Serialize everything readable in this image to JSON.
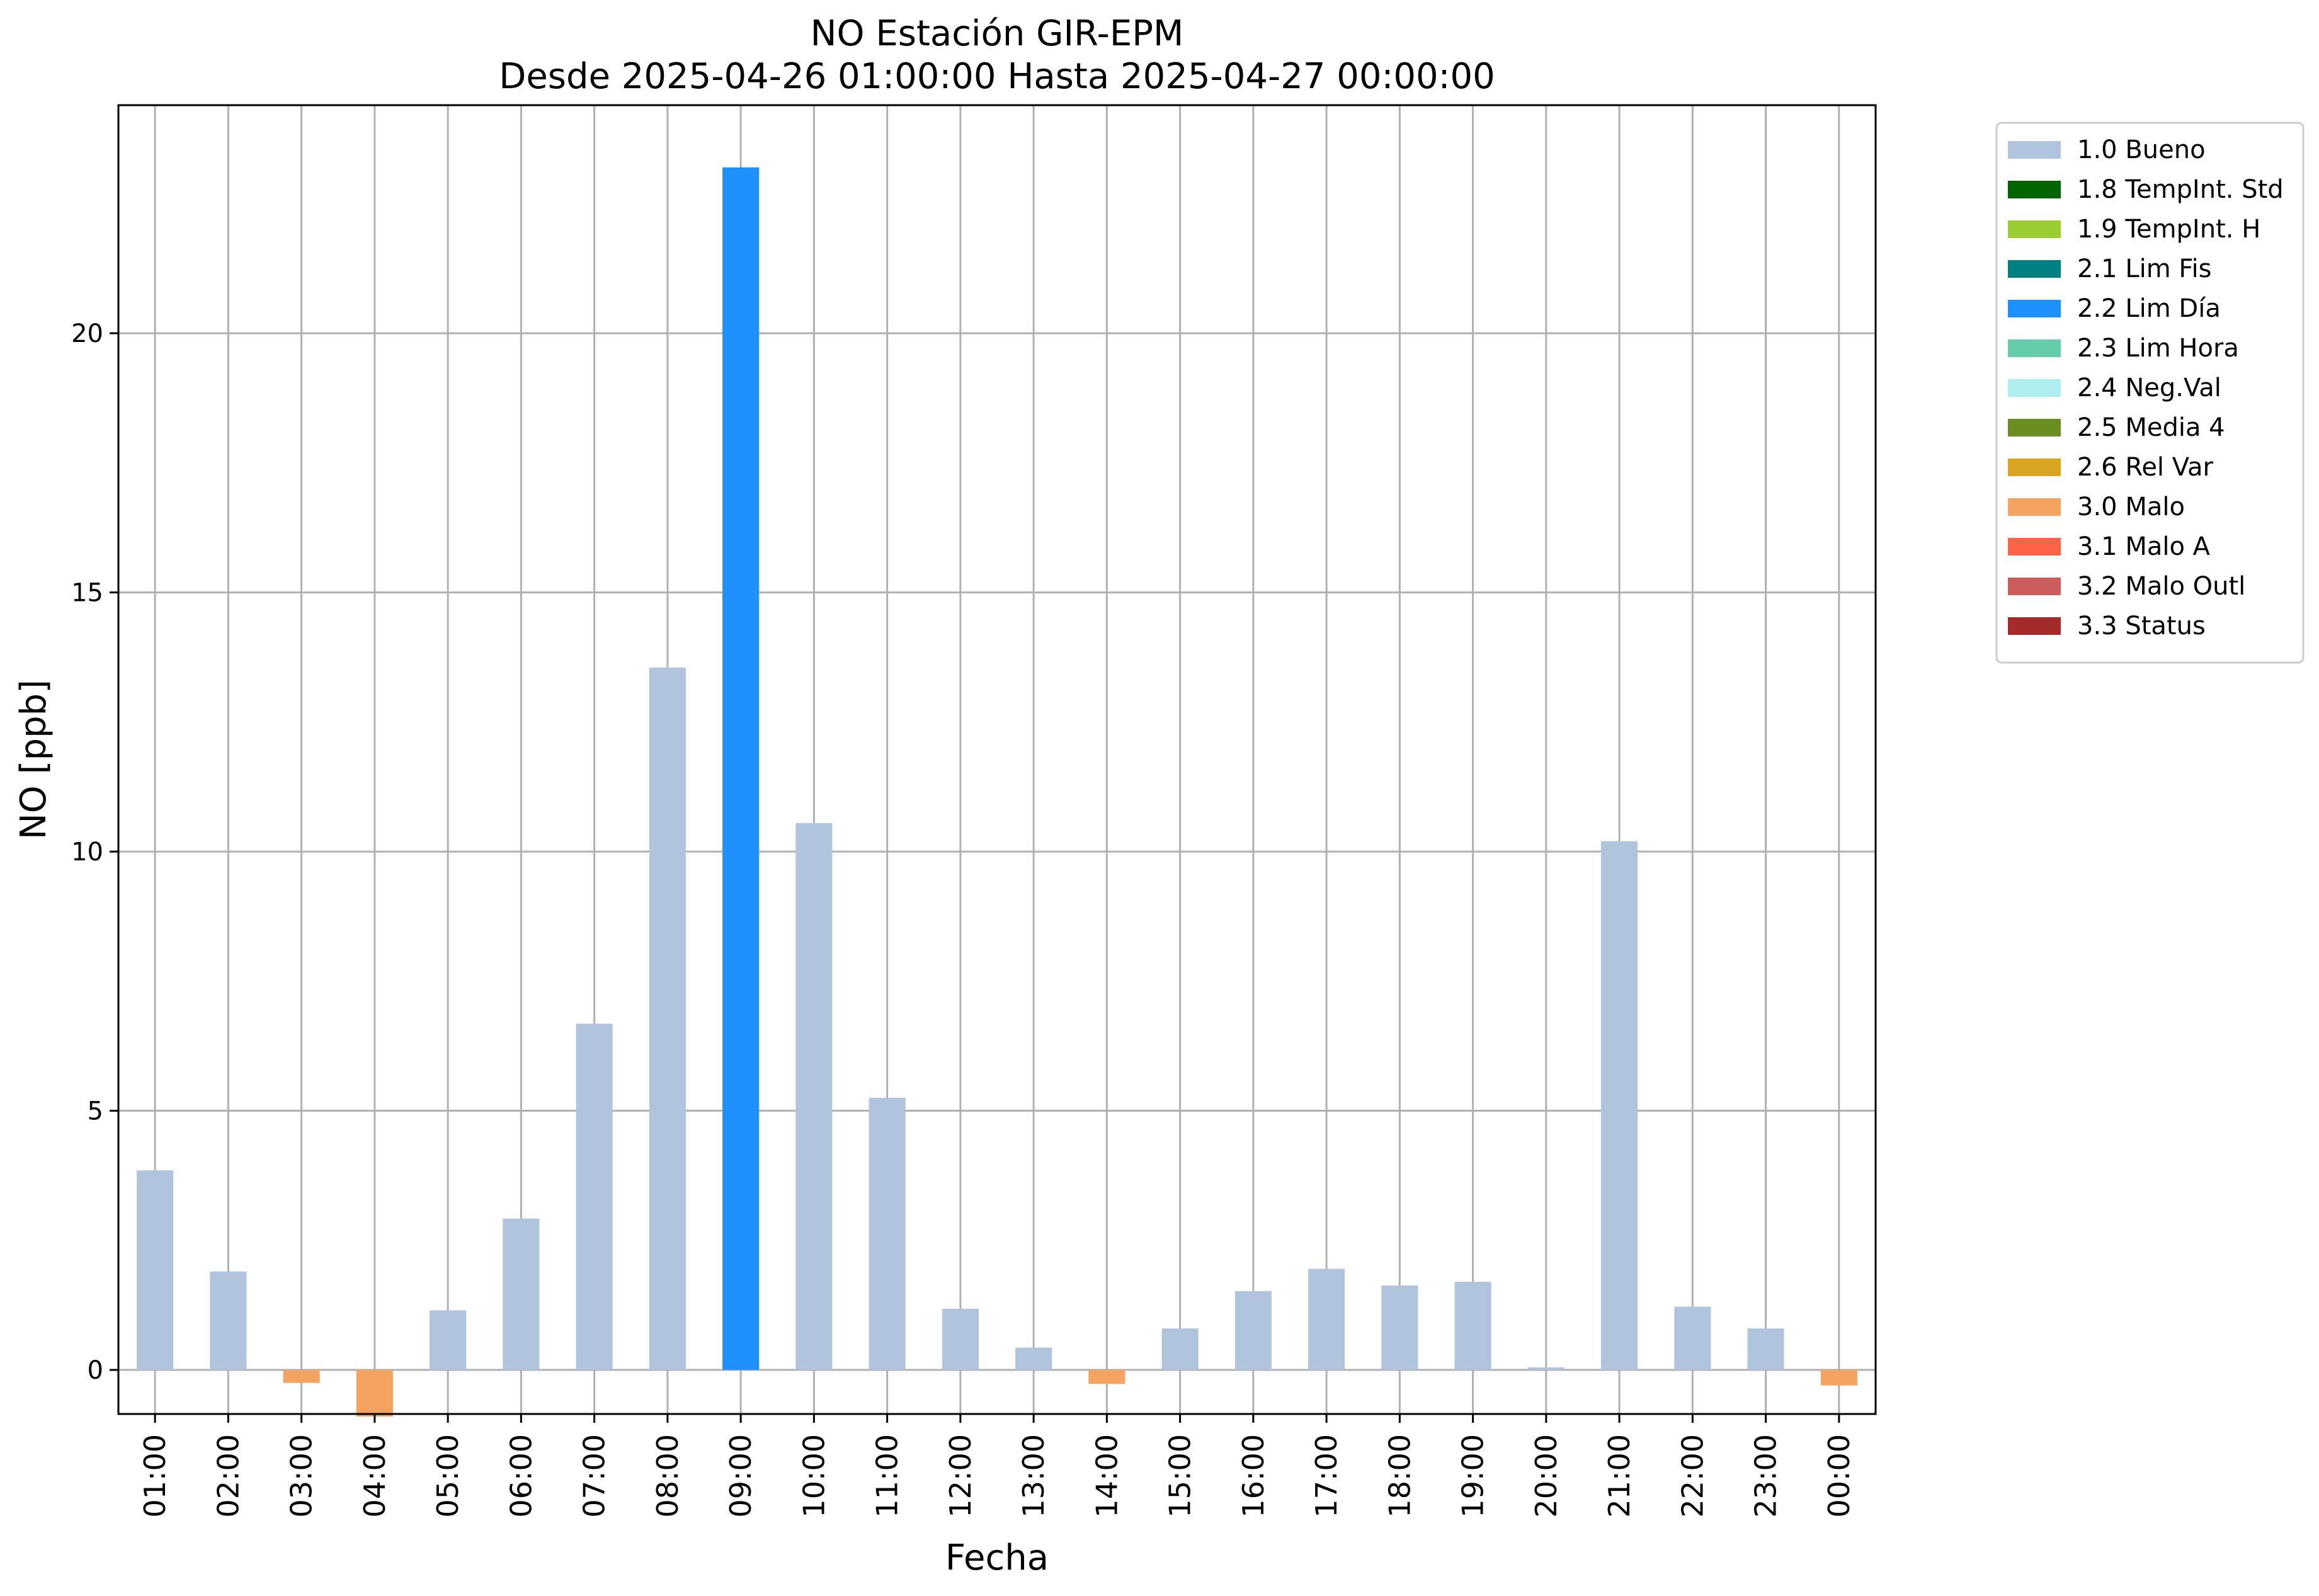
{
  "chart_data": {
    "type": "bar",
    "title": "NO Estación GIR-EPM",
    "subtitle": "Desde 2025-04-26 01:00:00 Hasta 2025-04-27 00:00:00",
    "xlabel": "Fecha",
    "ylabel": "NO [ppb]",
    "ylim": [
      -0.85,
      24.4
    ],
    "yticks": [
      0,
      5,
      10,
      15,
      20
    ],
    "grid": true,
    "legend_position": "outside-right-top",
    "categories": [
      "01:00",
      "02:00",
      "03:00",
      "04:00",
      "05:00",
      "06:00",
      "07:00",
      "08:00",
      "09:00",
      "10:00",
      "11:00",
      "12:00",
      "13:00",
      "14:00",
      "15:00",
      "16:00",
      "17:00",
      "18:00",
      "19:00",
      "20:00",
      "21:00",
      "22:00",
      "23:00",
      "00:00"
    ],
    "values": [
      3.85,
      1.9,
      -0.25,
      -0.9,
      1.15,
      2.92,
      6.68,
      13.55,
      23.2,
      10.55,
      5.25,
      1.18,
      0.43,
      -0.27,
      0.8,
      1.52,
      1.95,
      1.63,
      1.7,
      0.05,
      10.2,
      1.22,
      0.8,
      -0.3
    ],
    "flags": [
      "1.0",
      "1.0",
      "3.0",
      "3.0",
      "1.0",
      "1.0",
      "1.0",
      "1.0",
      "2.2",
      "1.0",
      "1.0",
      "1.0",
      "1.0",
      "3.0",
      "1.0",
      "1.0",
      "1.0",
      "1.0",
      "1.0",
      "1.0",
      "1.0",
      "1.0",
      "1.0",
      "3.0"
    ],
    "legend": [
      {
        "code": "1.0",
        "label": "1.0 Bueno",
        "color": "#b0c4de"
      },
      {
        "code": "1.8",
        "label": "1.8 TempInt. Std",
        "color": "#006400"
      },
      {
        "code": "1.9",
        "label": "1.9 TempInt. H",
        "color": "#9acd32"
      },
      {
        "code": "2.1",
        "label": "2.1 Lim Fis",
        "color": "#008080"
      },
      {
        "code": "2.2",
        "label": "2.2 Lim Día",
        "color": "#1e90ff"
      },
      {
        "code": "2.3",
        "label": "2.3 Lim Hora",
        "color": "#66cdaa"
      },
      {
        "code": "2.4",
        "label": "2.4 Neg.Val",
        "color": "#afeeee"
      },
      {
        "code": "2.5",
        "label": "2.5 Media 4",
        "color": "#6b8e23"
      },
      {
        "code": "2.6",
        "label": "2.6 Rel Var",
        "color": "#daa520"
      },
      {
        "code": "3.0",
        "label": "3.0 Malo",
        "color": "#f4a460"
      },
      {
        "code": "3.1",
        "label": "3.1 Malo A",
        "color": "#ff6347"
      },
      {
        "code": "3.2",
        "label": "3.2 Malo Outl",
        "color": "#cd5c5c"
      },
      {
        "code": "3.3",
        "label": "3.3 Status",
        "color": "#a52a2a"
      }
    ]
  }
}
